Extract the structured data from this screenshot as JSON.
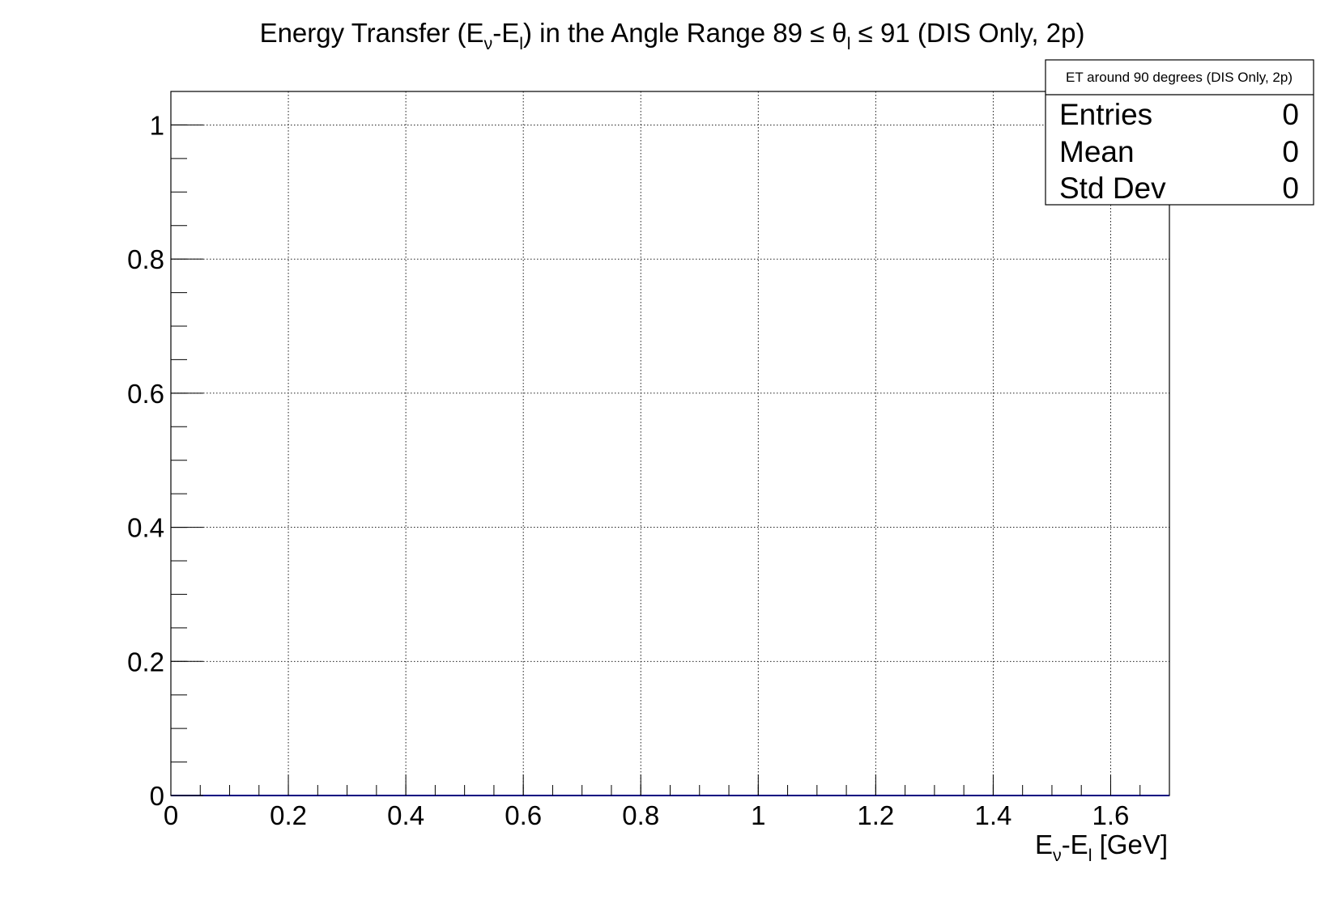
{
  "chart_data": {
    "type": "bar",
    "title": {
      "parts": [
        {
          "text": "Energy Transfer (E"
        },
        {
          "text": "ν",
          "sub": true
        },
        {
          "text": "-E"
        },
        {
          "text": "l",
          "sub": true
        },
        {
          "text": ") in the Angle Range 89 ≤ θ"
        },
        {
          "text": "l",
          "sub": true
        },
        {
          "text": " ≤ 91 (DIS Only, 2p)"
        }
      ]
    },
    "xlabel": {
      "parts": [
        {
          "text": "E"
        },
        {
          "text": "ν",
          "sub": true
        },
        {
          "text": "-E"
        },
        {
          "text": "l",
          "sub": true
        },
        {
          "text": " [GeV]"
        }
      ]
    },
    "ylabel": "",
    "xlim": [
      0,
      1.7
    ],
    "ylim": [
      0,
      1.05
    ],
    "x_ticks": [
      0,
      0.2,
      0.4,
      0.6,
      0.8,
      1,
      1.2,
      1.4,
      1.6
    ],
    "x_tick_labels": [
      "0",
      "0.2",
      "0.4",
      "0.6",
      "0.8",
      "1",
      "1.2",
      "1.4",
      "1.6"
    ],
    "x_minor_step": 0.05,
    "y_ticks": [
      0,
      0.2,
      0.4,
      0.6,
      0.8,
      1
    ],
    "y_tick_labels": [
      "0",
      "0.2",
      "0.4",
      "0.6",
      "0.8",
      "1"
    ],
    "y_minor_step": 0.05,
    "grid": true,
    "series": [
      {
        "values": []
      }
    ],
    "line_color": "#000080",
    "stats_box": {
      "title": "ET around 90 degrees (DIS Only, 2p)",
      "legend_position": "top-right",
      "rows": [
        {
          "label": "Entries",
          "value": "0"
        },
        {
          "label": "Mean",
          "value": "0"
        },
        {
          "label": "Std Dev",
          "value": "0"
        }
      ]
    }
  }
}
